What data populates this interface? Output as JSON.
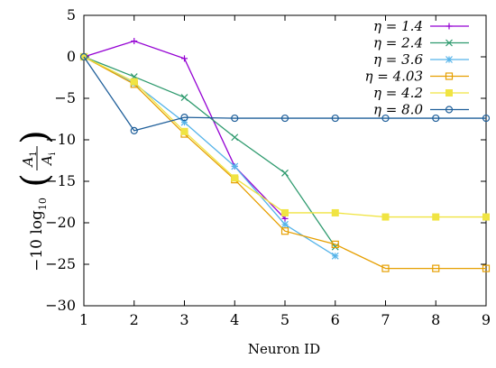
{
  "chart_data": {
    "type": "line",
    "xlabel": "Neuron ID",
    "ylabel": {
      "prefix": "−10 log",
      "subscript": "10",
      "numerator": "A",
      "numerator_sub": "1",
      "denominator": "A",
      "denominator_sub": "i"
    },
    "xlim": [
      1,
      9
    ],
    "ylim": [
      -30,
      5
    ],
    "xticks": [
      1,
      2,
      3,
      4,
      5,
      6,
      7,
      8,
      9
    ],
    "yticks": [
      5,
      0,
      -5,
      -10,
      -15,
      -20,
      -25,
      -30
    ],
    "grid": false,
    "legend_position": "top-right",
    "series": [
      {
        "name": "η = 1.4",
        "color": "#9400d3",
        "marker": "plus",
        "x": [
          1,
          2,
          3,
          4,
          5
        ],
        "y": [
          0,
          1.9,
          -0.2,
          -13.2,
          -19.5
        ]
      },
      {
        "name": "η = 2.4",
        "color": "#2e9a6e",
        "marker": "cross",
        "x": [
          1,
          2,
          3,
          4,
          5,
          6
        ],
        "y": [
          0,
          -2.4,
          -4.9,
          -9.7,
          -14.0,
          -22.9
        ]
      },
      {
        "name": "η = 3.6",
        "color": "#56b4e9",
        "marker": "star",
        "x": [
          1,
          2,
          3,
          4,
          5,
          6
        ],
        "y": [
          0,
          -3.2,
          -7.9,
          -13.2,
          -20.2,
          -24.0
        ]
      },
      {
        "name": "η = 4.03",
        "color": "#e69f00",
        "marker": "square",
        "x": [
          1,
          2,
          3,
          4,
          5,
          6,
          7,
          8,
          9
        ],
        "y": [
          0,
          -3.3,
          -9.3,
          -14.8,
          -21.0,
          -22.6,
          -25.5,
          -25.5,
          -25.5
        ]
      },
      {
        "name": "η = 4.2",
        "color": "#f0e442",
        "marker": "filled-square",
        "x": [
          1,
          2,
          3,
          4,
          5,
          6,
          7,
          8,
          9
        ],
        "y": [
          0,
          -3.0,
          -9.0,
          -14.6,
          -18.8,
          -18.8,
          -19.3,
          -19.3,
          -19.3
        ]
      },
      {
        "name": "η = 8.0",
        "color": "#1f5f9a",
        "marker": "circle",
        "x": [
          1,
          2,
          3,
          4,
          5,
          6,
          7,
          8,
          9
        ],
        "y": [
          0,
          -8.9,
          -7.3,
          -7.4,
          -7.4,
          -7.4,
          -7.4,
          -7.4,
          -7.4
        ]
      }
    ]
  }
}
